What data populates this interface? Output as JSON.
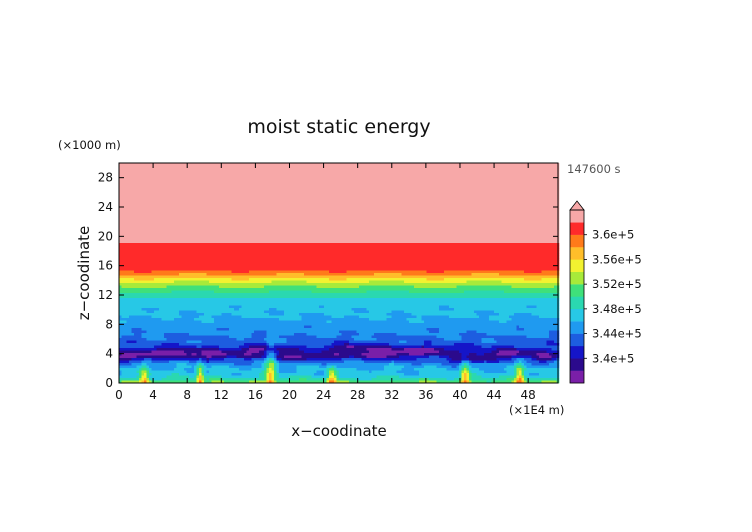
{
  "chart_data": {
    "type": "heatmap",
    "title": "moist static energy",
    "xlabel": "x−coodinate",
    "ylabel": "z−coodinate",
    "x_unit": "(×1E4 m)",
    "y_unit": "(×1000 m)",
    "time_label": "147600 s",
    "xlim": [
      0,
      51.5
    ],
    "ylim": [
      0,
      30
    ],
    "x_ticks": [
      "0",
      "4",
      "8",
      "12",
      "16",
      "20",
      "24",
      "28",
      "32",
      "36",
      "40",
      "44",
      "48"
    ],
    "y_ticks": [
      "0",
      "4",
      "8",
      "12",
      "16",
      "20",
      "24",
      "28"
    ],
    "colorbar": {
      "tick_labels": [
        "3.6e+5",
        "3.56e+5",
        "3.52e+5",
        "3.48e+5",
        "3.44e+5",
        "3.4e+5"
      ],
      "levels": [
        338000,
        340000,
        342000,
        344000,
        346000,
        348000,
        350000,
        352000,
        354000,
        356000,
        358000,
        360000,
        362000
      ],
      "colors": [
        "#7a1fa8",
        "#2b0a8c",
        "#1515c8",
        "#1d5de0",
        "#1f9af0",
        "#27c8e6",
        "#2ad8b0",
        "#3fe07a",
        "#a8ea3a",
        "#f2f230",
        "#ffbe2a",
        "#ff7a1a",
        "#ff2a2a",
        "#f7a8a8"
      ],
      "extend": "max"
    },
    "profile": {
      "z": [
        0.0,
        0.5,
        1.0,
        2.0,
        3.0,
        4.0,
        5.0,
        6.0,
        7.0,
        8.0,
        9.0,
        10.0,
        11.0,
        12.0,
        12.8,
        13.5,
        14.0,
        14.5,
        15.0,
        15.6,
        30.0
      ],
      "mse": [
        352500,
        349000,
        347000,
        346000,
        344000,
        342000,
        342500,
        343500,
        344500,
        345000,
        346000,
        346500,
        347000,
        349000,
        351000,
        353000,
        355000,
        357000,
        359000,
        361000,
        365000
      ]
    },
    "features": [
      {
        "kind": "low-mse-patch",
        "x": 1.0,
        "z": 3.5,
        "dx": 3.0,
        "dz": 0.6
      },
      {
        "kind": "low-mse-patch",
        "x": 5.5,
        "z": 4.2,
        "dx": 3.5,
        "dz": 0.6
      },
      {
        "kind": "low-mse-patch",
        "x": 11.0,
        "z": 3.8,
        "dx": 4.0,
        "dz": 0.7
      },
      {
        "kind": "low-mse-patch",
        "x": 17.0,
        "z": 4.6,
        "dx": 3.0,
        "dz": 0.5
      },
      {
        "kind": "low-mse-patch",
        "x": 22.0,
        "z": 3.6,
        "dx": 5.0,
        "dz": 0.6
      },
      {
        "kind": "low-mse-patch",
        "x": 27.5,
        "z": 4.8,
        "dx": 3.0,
        "dz": 0.5
      },
      {
        "kind": "low-mse-patch",
        "x": 31.0,
        "z": 3.9,
        "dx": 3.5,
        "dz": 0.7
      },
      {
        "kind": "low-mse-patch",
        "x": 36.0,
        "z": 4.4,
        "dx": 4.0,
        "dz": 0.6
      },
      {
        "kind": "low-mse-patch",
        "x": 41.0,
        "z": 3.2,
        "dx": 3.0,
        "dz": 0.6
      },
      {
        "kind": "low-mse-patch",
        "x": 46.0,
        "z": 4.0,
        "dx": 3.5,
        "dz": 0.6
      },
      {
        "kind": "low-mse-patch",
        "x": 50.0,
        "z": 3.4,
        "dx": 1.5,
        "dz": 0.5
      },
      {
        "kind": "moist-plume",
        "x": 9.5,
        "z": 1.0,
        "dx": 0.4,
        "dz": 2.0
      },
      {
        "kind": "moist-plume",
        "x": 17.8,
        "z": 1.2,
        "dx": 0.6,
        "dz": 3.5
      },
      {
        "kind": "moist-plume",
        "x": 25.0,
        "z": 0.8,
        "dx": 0.5,
        "dz": 1.5
      },
      {
        "kind": "moist-plume",
        "x": 40.6,
        "z": 1.0,
        "dx": 0.5,
        "dz": 2.5
      },
      {
        "kind": "moist-plume",
        "x": 47.0,
        "z": 0.8,
        "dx": 0.5,
        "dz": 1.8
      },
      {
        "kind": "moist-plume",
        "x": 3.0,
        "z": 0.8,
        "dx": 0.5,
        "dz": 1.4
      }
    ]
  }
}
